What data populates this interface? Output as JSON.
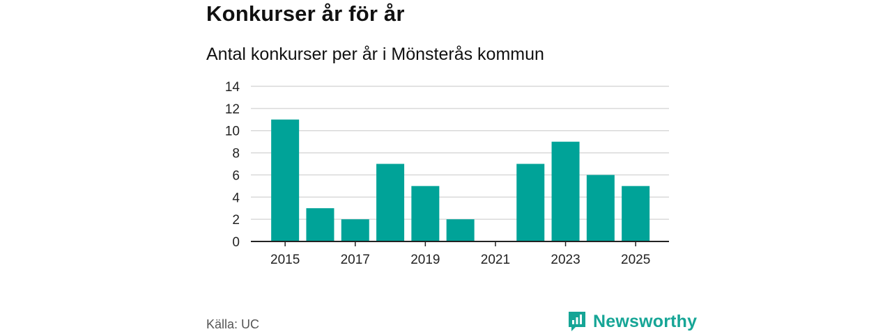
{
  "header": {
    "title": "Konkurser år för år",
    "subtitle": "Antal konkurser per år i Mönsterås kommun"
  },
  "footer": {
    "source": "Källa: UC",
    "brand": "Newsworthy"
  },
  "colors": {
    "bar": "#00a398",
    "grid": "#d9d9d9",
    "axis": "#222222",
    "brand": "#16a596"
  },
  "chart_data": {
    "type": "bar",
    "title": "Konkurser år för år",
    "subtitle": "Antal konkurser per år i Mönsterås kommun",
    "xlabel": "",
    "ylabel": "",
    "categories": [
      "2015",
      "2016",
      "2017",
      "2018",
      "2019",
      "2020",
      "2021",
      "2022",
      "2023",
      "2024",
      "2025"
    ],
    "values": [
      11,
      3,
      2,
      7,
      5,
      2,
      0,
      7,
      9,
      6,
      5
    ],
    "x_tick_labels": [
      "2015",
      "2017",
      "2019",
      "2021",
      "2023",
      "2025"
    ],
    "y_ticks": [
      0,
      2,
      4,
      6,
      8,
      10,
      12,
      14
    ],
    "ylim": [
      0,
      14
    ],
    "grid": true,
    "legend": "none"
  }
}
